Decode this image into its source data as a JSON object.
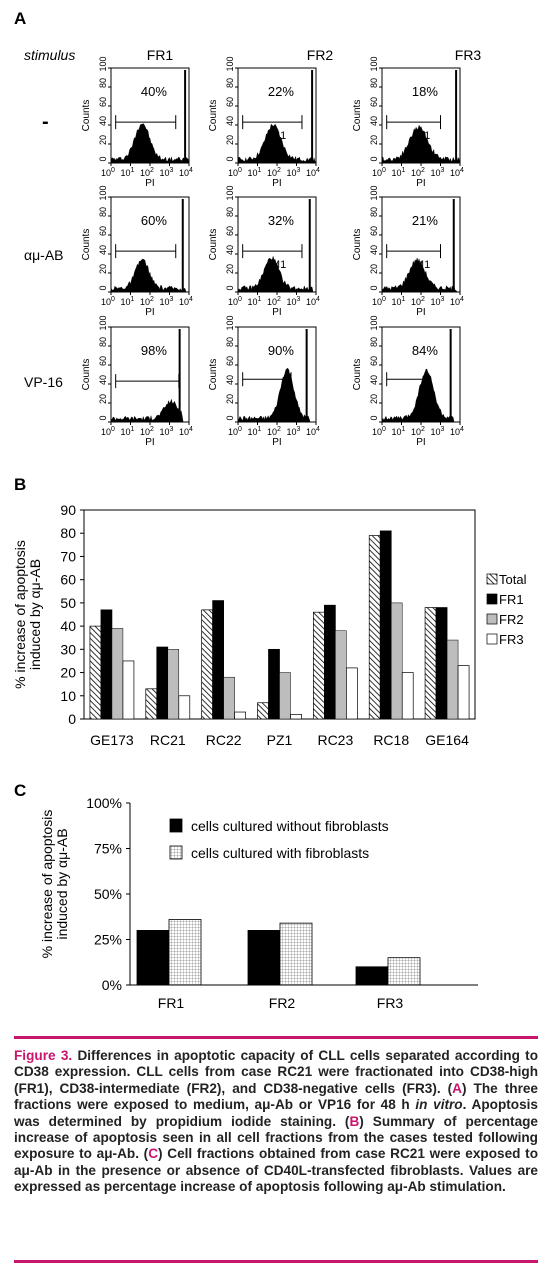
{
  "panel_a": {
    "label": "A",
    "stimulus_header": "stimulus",
    "columns": [
      "FR1",
      "FR2",
      "FR3"
    ],
    "rows": [
      {
        "stimulus": "-",
        "percents": [
          "40%",
          "22%",
          "18%"
        ],
        "m1": [
          false,
          true,
          true
        ]
      },
      {
        "stimulus": "αμ-AB",
        "percents": [
          "60%",
          "32%",
          "21%"
        ],
        "m1": [
          false,
          true,
          true
        ]
      },
      {
        "stimulus": "VP-16",
        "percents": [
          "98%",
          "90%",
          "84%"
        ],
        "m1": [
          false,
          false,
          false
        ]
      }
    ],
    "m1_label": "M1",
    "y_axis_label": "Counts",
    "x_axis_label": "PI",
    "y_ticks": [
      "0",
      "20",
      "40",
      "60",
      "80",
      "100"
    ],
    "x_ticks": [
      {
        "base": "10",
        "exp": "0"
      },
      {
        "base": "10",
        "exp": "1"
      },
      {
        "base": "10",
        "exp": "2"
      },
      {
        "base": "10",
        "exp": "3"
      },
      {
        "base": "10",
        "exp": "4"
      }
    ]
  },
  "panel_b": {
    "label": "B",
    "chart_data": {
      "type": "bar",
      "categories": [
        "GE173",
        "RC21",
        "RC22",
        "PZ1",
        "RC23",
        "RC18",
        "GE164"
      ],
      "series": [
        {
          "name": "Total",
          "values": [
            40,
            13,
            47,
            7,
            46,
            79,
            48
          ],
          "fill": "hatch"
        },
        {
          "name": "FR1",
          "values": [
            47,
            31,
            51,
            30,
            49,
            81,
            48
          ],
          "fill": "#000000"
        },
        {
          "name": "FR2",
          "values": [
            39,
            30,
            18,
            20,
            38,
            50,
            34
          ],
          "fill": "#bdbdbd"
        },
        {
          "name": "FR3",
          "values": [
            25,
            10,
            3,
            2,
            22,
            20,
            23
          ],
          "fill": "#ffffff"
        }
      ],
      "ylabel_line1": "% increase of apoptosis",
      "ylabel_line2": "induced by αμ-AB",
      "ylim": [
        0,
        90
      ],
      "yticks": [
        0,
        10,
        20,
        30,
        40,
        50,
        60,
        70,
        80,
        90
      ],
      "legend_position": "right",
      "grid": false
    }
  },
  "panel_c": {
    "label": "C",
    "chart_data": {
      "type": "bar",
      "categories": [
        "FR1",
        "FR2",
        "FR3"
      ],
      "series": [
        {
          "name": "cells cultured without fibroblasts",
          "values": [
            30,
            30,
            10
          ],
          "fill": "#000000"
        },
        {
          "name": "cells cultured with fibroblasts",
          "values": [
            36,
            34,
            15
          ],
          "fill": "grid"
        }
      ],
      "ylabel_line1": "% increase of apoptosis",
      "ylabel_line2": "induced by αμ-AB",
      "ylim": [
        0,
        100
      ],
      "ytick_labels": [
        "0%",
        "25%",
        "50%",
        "75%",
        "100%"
      ],
      "legend_position": "top",
      "grid": false
    }
  },
  "caption": {
    "figure_label": "Figure 3.",
    "text_1": " Differences in apoptotic capacity of CLL cells separated according to CD38 expression. CLL cells from case RC21 were fractionated into CD38-high (FR1), CD38-intermediate (FR2), and CD38-negative cells (FR3). (",
    "ref_a": "A",
    "text_2": ") The three fractions were exposed to medium, aμ-Ab or VP16 for 48 h ",
    "in_vitro": "in vitro",
    "text_3": ". Apoptosis was determined by propidium iodide staining. (",
    "ref_b": "B",
    "text_4": ") Summary of percentage increase of apoptosis seen in all cell fractions from the cases tested following exposure to aμ-Ab. (",
    "ref_c": "C",
    "text_5": ") Cell fractions obtained from case RC21 were exposed to aμ-Ab in the presence or absence of CD40L-transfected fibroblasts. Values are expressed as percentage increase of apoptosis following aμ-Ab stimulation."
  }
}
